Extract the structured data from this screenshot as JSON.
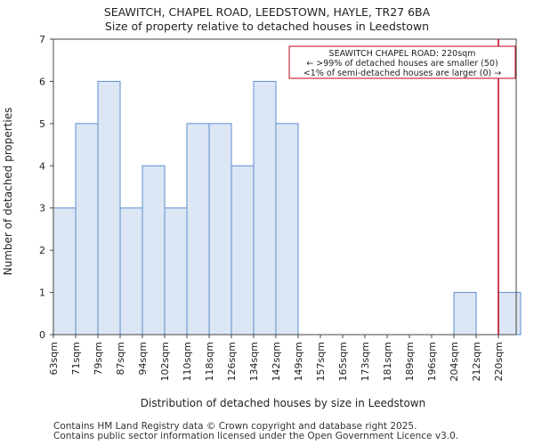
{
  "chart_data": {
    "type": "bar",
    "title": "SEAWITCH, CHAPEL ROAD, LEEDSTOWN, HAYLE, TR27 6BA",
    "subtitle": "Size of property relative to detached houses in Leedstown",
    "xlabel": "Distribution of detached houses by size in Leedstown",
    "ylabel": "Number of detached properties",
    "categories": [
      "63sqm",
      "71sqm",
      "79sqm",
      "87sqm",
      "94sqm",
      "102sqm",
      "110sqm",
      "118sqm",
      "126sqm",
      "134sqm",
      "142sqm",
      "149sqm",
      "157sqm",
      "165sqm",
      "173sqm",
      "181sqm",
      "189sqm",
      "196sqm",
      "204sqm",
      "212sqm",
      "220sqm"
    ],
    "values": [
      3,
      5,
      6,
      3,
      4,
      3,
      5,
      5,
      4,
      6,
      5,
      0,
      0,
      0,
      0,
      0,
      0,
      0,
      1,
      0,
      1
    ],
    "ylim": [
      0,
      7
    ],
    "yticks": [
      0,
      1,
      2,
      3,
      4,
      5,
      6,
      7
    ],
    "grid": false,
    "bar_color": "#dce6f4",
    "bar_edge_color": "#5b8fd0",
    "marker": {
      "value": "220sqm",
      "color": "#c0001a"
    },
    "annotation": {
      "lines": [
        "SEAWITCH CHAPEL ROAD: 220sqm",
        "← >99% of detached houses are smaller (50)",
        "<1% of semi-detached houses are larger (0) →"
      ]
    }
  },
  "footer": {
    "line1": "Contains HM Land Registry data © Crown copyright and database right 2025.",
    "line2": "Contains public sector information licensed under the Open Government Licence v3.0."
  }
}
